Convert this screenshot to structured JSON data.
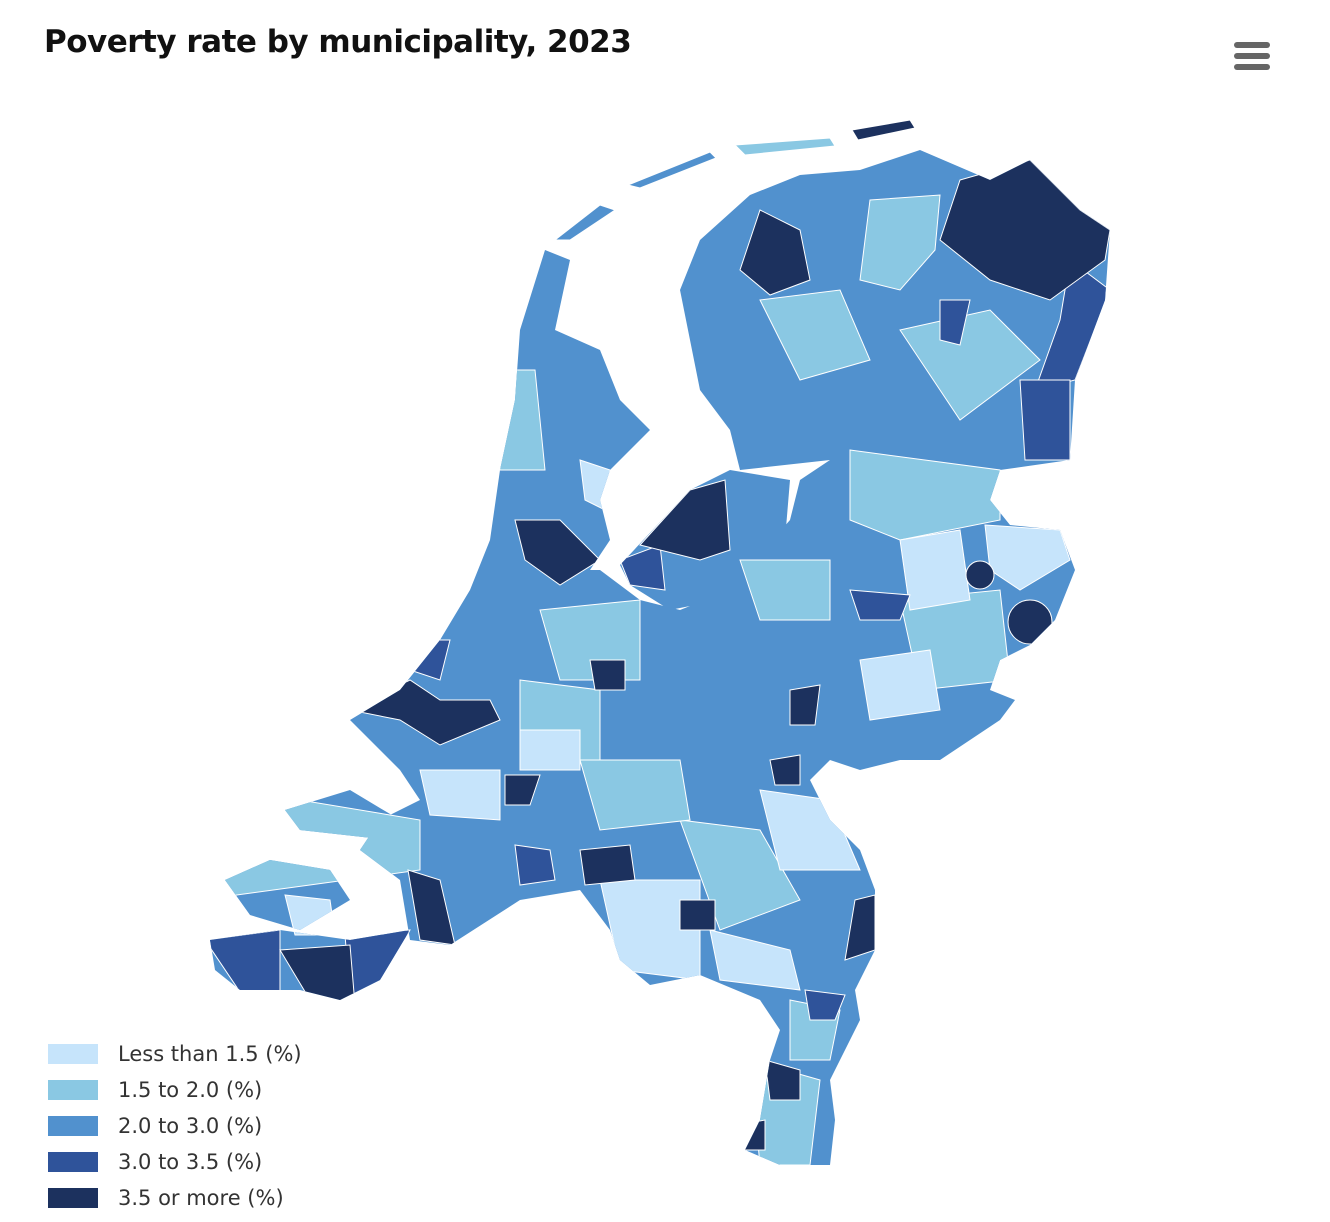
{
  "title": "Poverty rate by municipality, 2023",
  "menu_icon": "hamburger-menu-icon",
  "legend": [
    {
      "label": "Less than 1.5 (%)",
      "color": "#c6e4fb"
    },
    {
      "label": "1.5 to 2.0 (%)",
      "color": "#8ac8e3"
    },
    {
      "label": "2.0 to 3.0 (%)",
      "color": "#5191ce"
    },
    {
      "label": "3.0 to 3.5 (%)",
      "color": "#2f539a"
    },
    {
      "label": "3.5 or more (%)",
      "color": "#1c315e"
    }
  ]
}
